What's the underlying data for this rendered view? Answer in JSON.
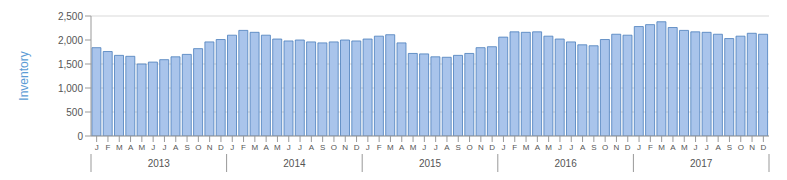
{
  "chart_data": {
    "type": "bar",
    "y_label": "Inventory",
    "categories": [
      "J",
      "F",
      "M",
      "A",
      "M",
      "J",
      "J",
      "A",
      "S",
      "O",
      "N",
      "D",
      "J",
      "F",
      "M",
      "A",
      "M",
      "J",
      "J",
      "A",
      "S",
      "O",
      "N",
      "D",
      "J",
      "F",
      "M",
      "A",
      "M",
      "J",
      "J",
      "A",
      "S",
      "O",
      "N",
      "D",
      "J",
      "F",
      "M",
      "A",
      "M",
      "J",
      "J",
      "A",
      "S",
      "O",
      "N",
      "D",
      "J",
      "F",
      "M",
      "A",
      "M",
      "J",
      "J",
      "A",
      "S",
      "O",
      "N",
      "D"
    ],
    "years": [
      "2013",
      "2014",
      "2015",
      "2016",
      "2017"
    ],
    "values": [
      1840,
      1760,
      1680,
      1660,
      1500,
      1540,
      1590,
      1650,
      1700,
      1820,
      1960,
      2010,
      2100,
      2200,
      2160,
      2100,
      2020,
      1980,
      2000,
      1960,
      1940,
      1960,
      2000,
      1980,
      2020,
      2080,
      2110,
      1940,
      1720,
      1710,
      1650,
      1640,
      1680,
      1720,
      1840,
      1860,
      2060,
      2170,
      2160,
      2170,
      2080,
      2020,
      1960,
      1900,
      1880,
      2010,
      2120,
      2100,
      2280,
      2320,
      2380,
      2260,
      2200,
      2170,
      2160,
      2120,
      2030,
      2080,
      2140,
      2120
    ],
    "color": "#a9c4eb",
    "ylim": [
      0,
      2500
    ],
    "yticks": [
      0,
      500,
      {
        "value": 1000,
        "label": "1,000"
      },
      {
        "value": 1500,
        "label": "1,500"
      },
      {
        "value": 2000,
        "label": "2,000"
      },
      {
        "value": 2500,
        "label": "2,500"
      }
    ],
    "grid": true
  }
}
